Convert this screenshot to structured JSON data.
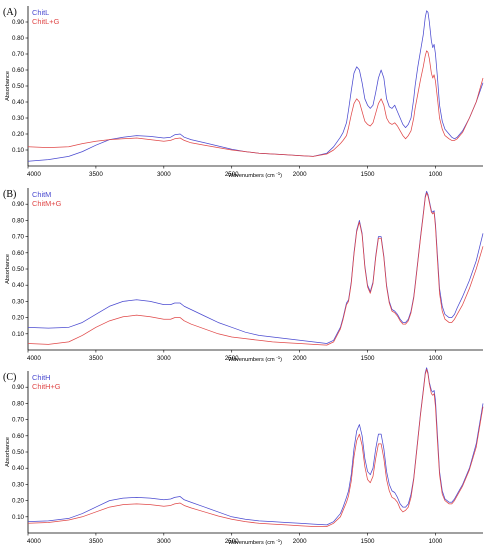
{
  "colors": {
    "series_a": "#4a4ad0",
    "series_b": "#e04848"
  },
  "chart_data": [
    {
      "type": "line",
      "panel_label": "(A)",
      "xlabel": "Wavenumbers (cm",
      "xlabel_sup": "-1",
      "xlabel_end": ")",
      "ylabel": "Absorbance",
      "xlim": [
        4000,
        650
      ],
      "ylim": [
        0,
        1.0
      ],
      "x_ticks": [
        4000,
        3500,
        3000,
        2500,
        2000,
        1500,
        1000
      ],
      "y_ticks": [
        0.1,
        0.2,
        0.3,
        0.4,
        0.5,
        0.6,
        0.7,
        0.8,
        0.9
      ],
      "series": [
        {
          "name": "ChitL",
          "color": "#4a4ad0",
          "x": [
            4000,
            3850,
            3700,
            3600,
            3500,
            3400,
            3300,
            3200,
            3100,
            3000,
            2950,
            2920,
            2880,
            2850,
            2800,
            2700,
            2600,
            2500,
            2400,
            2300,
            2200,
            2100,
            2000,
            1900,
            1800,
            1750,
            1700,
            1680,
            1655,
            1640,
            1620,
            1600,
            1580,
            1560,
            1540,
            1520,
            1500,
            1480,
            1460,
            1440,
            1420,
            1400,
            1380,
            1360,
            1340,
            1320,
            1300,
            1280,
            1260,
            1240,
            1220,
            1200,
            1180,
            1160,
            1150,
            1130,
            1110,
            1090,
            1075,
            1065,
            1055,
            1045,
            1030,
            1020,
            1010,
            1000,
            985,
            970,
            950,
            930,
            900,
            880,
            860,
            840,
            800,
            750,
            700,
            650
          ],
          "y": [
            0.03,
            0.04,
            0.06,
            0.09,
            0.13,
            0.165,
            0.18,
            0.19,
            0.185,
            0.175,
            0.18,
            0.195,
            0.2,
            0.18,
            0.165,
            0.145,
            0.125,
            0.105,
            0.09,
            0.08,
            0.075,
            0.07,
            0.065,
            0.06,
            0.08,
            0.12,
            0.18,
            0.21,
            0.27,
            0.35,
            0.47,
            0.58,
            0.62,
            0.6,
            0.52,
            0.42,
            0.38,
            0.36,
            0.38,
            0.46,
            0.55,
            0.6,
            0.55,
            0.42,
            0.37,
            0.36,
            0.38,
            0.34,
            0.3,
            0.26,
            0.24,
            0.26,
            0.3,
            0.42,
            0.5,
            0.62,
            0.72,
            0.82,
            0.93,
            0.97,
            0.96,
            0.9,
            0.78,
            0.74,
            0.76,
            0.7,
            0.55,
            0.38,
            0.28,
            0.23,
            0.2,
            0.18,
            0.17,
            0.18,
            0.22,
            0.3,
            0.4,
            0.52
          ]
        },
        {
          "name": "ChitL+G",
          "color": "#e04848",
          "x": [
            4000,
            3850,
            3700,
            3600,
            3500,
            3400,
            3300,
            3200,
            3100,
            3000,
            2950,
            2920,
            2880,
            2850,
            2800,
            2700,
            2600,
            2500,
            2400,
            2300,
            2200,
            2100,
            2000,
            1900,
            1800,
            1750,
            1700,
            1680,
            1655,
            1640,
            1620,
            1600,
            1580,
            1560,
            1540,
            1520,
            1500,
            1480,
            1460,
            1440,
            1420,
            1400,
            1380,
            1360,
            1340,
            1320,
            1300,
            1280,
            1260,
            1240,
            1220,
            1200,
            1180,
            1160,
            1150,
            1130,
            1110,
            1090,
            1075,
            1065,
            1055,
            1045,
            1030,
            1020,
            1010,
            1000,
            985,
            970,
            950,
            930,
            900,
            880,
            860,
            840,
            800,
            750,
            700,
            650
          ],
          "y": [
            0.12,
            0.115,
            0.12,
            0.14,
            0.155,
            0.165,
            0.17,
            0.175,
            0.165,
            0.155,
            0.16,
            0.17,
            0.175,
            0.16,
            0.145,
            0.13,
            0.115,
            0.1,
            0.09,
            0.08,
            0.075,
            0.07,
            0.065,
            0.06,
            0.075,
            0.1,
            0.14,
            0.16,
            0.19,
            0.24,
            0.32,
            0.39,
            0.42,
            0.4,
            0.34,
            0.28,
            0.26,
            0.25,
            0.27,
            0.33,
            0.39,
            0.42,
            0.38,
            0.3,
            0.27,
            0.26,
            0.27,
            0.25,
            0.22,
            0.19,
            0.17,
            0.19,
            0.22,
            0.3,
            0.36,
            0.45,
            0.54,
            0.62,
            0.69,
            0.72,
            0.71,
            0.67,
            0.58,
            0.55,
            0.57,
            0.53,
            0.42,
            0.3,
            0.23,
            0.19,
            0.17,
            0.16,
            0.16,
            0.17,
            0.21,
            0.3,
            0.4,
            0.55
          ]
        }
      ]
    },
    {
      "type": "line",
      "panel_label": "(B)",
      "xlabel": "Wavenumbers (cm",
      "xlabel_sup": "-1",
      "xlabel_end": ")",
      "ylabel": "Absorbance",
      "xlim": [
        4000,
        650
      ],
      "ylim": [
        0,
        1.0
      ],
      "x_ticks": [
        4000,
        3500,
        3000,
        2500,
        2000,
        1500,
        1000
      ],
      "y_ticks": [
        0.1,
        0.2,
        0.3,
        0.4,
        0.5,
        0.6,
        0.7,
        0.8,
        0.9
      ],
      "series": [
        {
          "name": "ChitM",
          "color": "#4a4ad0",
          "x": [
            4000,
            3850,
            3700,
            3600,
            3500,
            3400,
            3300,
            3200,
            3100,
            3000,
            2950,
            2920,
            2880,
            2850,
            2800,
            2700,
            2600,
            2500,
            2400,
            2300,
            2200,
            2100,
            2000,
            1900,
            1800,
            1750,
            1700,
            1680,
            1655,
            1640,
            1620,
            1600,
            1580,
            1560,
            1540,
            1520,
            1500,
            1480,
            1460,
            1440,
            1420,
            1400,
            1380,
            1360,
            1340,
            1320,
            1300,
            1280,
            1260,
            1240,
            1220,
            1200,
            1180,
            1160,
            1150,
            1130,
            1110,
            1090,
            1075,
            1065,
            1055,
            1045,
            1030,
            1020,
            1010,
            1000,
            985,
            970,
            950,
            930,
            900,
            880,
            860,
            840,
            800,
            750,
            700,
            650
          ],
          "y": [
            0.14,
            0.135,
            0.14,
            0.17,
            0.22,
            0.27,
            0.3,
            0.31,
            0.3,
            0.28,
            0.28,
            0.29,
            0.29,
            0.27,
            0.25,
            0.21,
            0.17,
            0.14,
            0.11,
            0.09,
            0.08,
            0.07,
            0.06,
            0.05,
            0.04,
            0.06,
            0.14,
            0.2,
            0.29,
            0.31,
            0.42,
            0.6,
            0.74,
            0.8,
            0.72,
            0.52,
            0.4,
            0.36,
            0.42,
            0.58,
            0.7,
            0.7,
            0.58,
            0.4,
            0.3,
            0.25,
            0.24,
            0.22,
            0.19,
            0.17,
            0.17,
            0.19,
            0.24,
            0.33,
            0.4,
            0.55,
            0.7,
            0.84,
            0.95,
            0.98,
            0.96,
            0.92,
            0.86,
            0.85,
            0.86,
            0.78,
            0.58,
            0.38,
            0.27,
            0.22,
            0.2,
            0.2,
            0.22,
            0.26,
            0.33,
            0.43,
            0.55,
            0.72
          ]
        },
        {
          "name": "ChitM+G",
          "color": "#e04848",
          "x": [
            4000,
            3850,
            3700,
            3600,
            3500,
            3400,
            3300,
            3200,
            3100,
            3000,
            2950,
            2920,
            2880,
            2850,
            2800,
            2700,
            2600,
            2500,
            2400,
            2300,
            2200,
            2100,
            2000,
            1900,
            1800,
            1750,
            1700,
            1680,
            1655,
            1640,
            1620,
            1600,
            1580,
            1560,
            1540,
            1520,
            1500,
            1480,
            1460,
            1440,
            1420,
            1400,
            1380,
            1360,
            1340,
            1320,
            1300,
            1280,
            1260,
            1240,
            1220,
            1200,
            1180,
            1160,
            1150,
            1130,
            1110,
            1090,
            1075,
            1065,
            1055,
            1045,
            1030,
            1020,
            1010,
            1000,
            985,
            970,
            950,
            930,
            900,
            880,
            860,
            840,
            800,
            750,
            700,
            650
          ],
          "y": [
            0.04,
            0.035,
            0.05,
            0.09,
            0.14,
            0.18,
            0.205,
            0.215,
            0.205,
            0.19,
            0.19,
            0.2,
            0.2,
            0.18,
            0.16,
            0.13,
            0.1,
            0.08,
            0.07,
            0.06,
            0.05,
            0.045,
            0.04,
            0.035,
            0.03,
            0.05,
            0.13,
            0.19,
            0.28,
            0.3,
            0.41,
            0.59,
            0.73,
            0.79,
            0.71,
            0.51,
            0.39,
            0.35,
            0.41,
            0.57,
            0.69,
            0.69,
            0.57,
            0.39,
            0.29,
            0.24,
            0.23,
            0.21,
            0.18,
            0.16,
            0.16,
            0.18,
            0.23,
            0.32,
            0.39,
            0.54,
            0.69,
            0.83,
            0.94,
            0.97,
            0.95,
            0.91,
            0.85,
            0.84,
            0.85,
            0.76,
            0.55,
            0.35,
            0.24,
            0.19,
            0.17,
            0.17,
            0.19,
            0.22,
            0.28,
            0.38,
            0.5,
            0.64
          ]
        }
      ]
    },
    {
      "type": "line",
      "panel_label": "(C)",
      "xlabel": "Wavenumbers (cm",
      "xlabel_sup": "-1",
      "xlabel_end": ")",
      "ylabel": "Absorbance",
      "xlim": [
        4000,
        650
      ],
      "ylim": [
        0,
        1.0
      ],
      "x_ticks": [
        4000,
        3500,
        3000,
        2500,
        2000,
        1500,
        1000
      ],
      "y_ticks": [
        0.1,
        0.2,
        0.3,
        0.4,
        0.5,
        0.6,
        0.7,
        0.8,
        0.9
      ],
      "series": [
        {
          "name": "ChitH",
          "color": "#4a4ad0",
          "x": [
            4000,
            3850,
            3700,
            3600,
            3500,
            3400,
            3300,
            3200,
            3100,
            3000,
            2950,
            2920,
            2880,
            2850,
            2800,
            2700,
            2600,
            2500,
            2400,
            2300,
            2200,
            2100,
            2000,
            1900,
            1800,
            1750,
            1700,
            1680,
            1655,
            1640,
            1620,
            1600,
            1580,
            1560,
            1540,
            1520,
            1500,
            1480,
            1460,
            1440,
            1420,
            1400,
            1380,
            1360,
            1340,
            1320,
            1300,
            1280,
            1260,
            1240,
            1220,
            1200,
            1180,
            1160,
            1150,
            1130,
            1110,
            1090,
            1075,
            1065,
            1055,
            1045,
            1030,
            1020,
            1010,
            1000,
            985,
            970,
            950,
            930,
            900,
            880,
            860,
            840,
            800,
            750,
            700,
            650
          ],
          "y": [
            0.07,
            0.075,
            0.09,
            0.12,
            0.16,
            0.2,
            0.215,
            0.22,
            0.215,
            0.205,
            0.21,
            0.22,
            0.225,
            0.205,
            0.19,
            0.16,
            0.13,
            0.1,
            0.085,
            0.075,
            0.07,
            0.065,
            0.06,
            0.055,
            0.05,
            0.07,
            0.12,
            0.16,
            0.22,
            0.26,
            0.36,
            0.52,
            0.63,
            0.67,
            0.6,
            0.46,
            0.38,
            0.36,
            0.4,
            0.52,
            0.61,
            0.61,
            0.52,
            0.38,
            0.3,
            0.26,
            0.25,
            0.22,
            0.18,
            0.16,
            0.16,
            0.18,
            0.24,
            0.34,
            0.42,
            0.58,
            0.74,
            0.88,
            0.99,
            1.02,
            0.99,
            0.93,
            0.88,
            0.87,
            0.88,
            0.82,
            0.6,
            0.38,
            0.26,
            0.21,
            0.19,
            0.19,
            0.21,
            0.24,
            0.3,
            0.4,
            0.55,
            0.8
          ]
        },
        {
          "name": "ChitH+G",
          "color": "#e04848",
          "x": [
            4000,
            3850,
            3700,
            3600,
            3500,
            3400,
            3300,
            3200,
            3100,
            3000,
            2950,
            2920,
            2880,
            2850,
            2800,
            2700,
            2600,
            2500,
            2400,
            2300,
            2200,
            2100,
            2000,
            1900,
            1800,
            1750,
            1700,
            1680,
            1655,
            1640,
            1620,
            1600,
            1580,
            1560,
            1540,
            1520,
            1500,
            1480,
            1460,
            1440,
            1420,
            1400,
            1380,
            1360,
            1340,
            1320,
            1300,
            1280,
            1260,
            1240,
            1220,
            1200,
            1180,
            1160,
            1150,
            1130,
            1110,
            1090,
            1075,
            1065,
            1055,
            1045,
            1030,
            1020,
            1010,
            1000,
            985,
            970,
            950,
            930,
            900,
            880,
            860,
            840,
            800,
            750,
            700,
            650
          ],
          "y": [
            0.06,
            0.065,
            0.08,
            0.1,
            0.13,
            0.16,
            0.175,
            0.18,
            0.175,
            0.165,
            0.17,
            0.18,
            0.185,
            0.17,
            0.155,
            0.13,
            0.105,
            0.085,
            0.07,
            0.06,
            0.055,
            0.05,
            0.045,
            0.04,
            0.04,
            0.06,
            0.1,
            0.14,
            0.19,
            0.23,
            0.32,
            0.47,
            0.57,
            0.61,
            0.54,
            0.41,
            0.33,
            0.31,
            0.35,
            0.46,
            0.55,
            0.55,
            0.46,
            0.33,
            0.26,
            0.22,
            0.21,
            0.19,
            0.15,
            0.13,
            0.14,
            0.16,
            0.22,
            0.33,
            0.41,
            0.57,
            0.73,
            0.87,
            0.98,
            1.01,
            0.98,
            0.92,
            0.86,
            0.85,
            0.86,
            0.78,
            0.56,
            0.36,
            0.24,
            0.2,
            0.18,
            0.18,
            0.2,
            0.23,
            0.29,
            0.39,
            0.53,
            0.78
          ]
        }
      ]
    }
  ]
}
